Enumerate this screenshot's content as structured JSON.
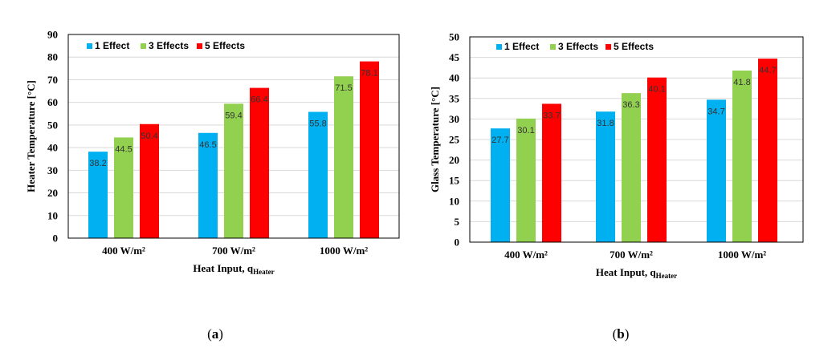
{
  "colors": {
    "1 Effect": "#00b0f0",
    "3 Effects": "#92d050",
    "5 Effects": "#ff0000",
    "grid": "#d9d9d9",
    "frame": "#000000"
  },
  "chart_data": [
    {
      "type": "bar",
      "panel_label": "a",
      "categories": [
        "400 W/m²",
        "700 W/m²",
        "1000 W/m²"
      ],
      "series": [
        {
          "name": "1 Effect",
          "values": [
            38.2,
            46.5,
            55.8
          ]
        },
        {
          "name": "3 Effects",
          "values": [
            44.5,
            59.4,
            71.5
          ]
        },
        {
          "name": "5 Effects",
          "values": [
            50.4,
            66.4,
            78.1
          ]
        }
      ],
      "xlabel": {
        "main": "Heat Input, q",
        "sub": "Heater"
      },
      "ylabel": "Heater Temperature [°C]",
      "ylim": [
        0,
        90
      ],
      "yticks": [
        0,
        10,
        20,
        30,
        40,
        50,
        60,
        70,
        80,
        90
      ],
      "grid": true,
      "legend": "top-left"
    },
    {
      "type": "bar",
      "panel_label": "b",
      "categories": [
        "400 W/m²",
        "700 W/m²",
        "1000 W/m²"
      ],
      "series": [
        {
          "name": "1 Effect",
          "values": [
            27.7,
            31.8,
            34.7
          ]
        },
        {
          "name": "3 Effects",
          "values": [
            30.1,
            36.3,
            41.8
          ]
        },
        {
          "name": "5 Effects",
          "values": [
            33.7,
            40.1,
            44.7
          ]
        }
      ],
      "xlabel": {
        "main": "Heat Input, q",
        "sub": "Heater"
      },
      "ylabel": "Glass Temperature [°C]",
      "ylim": [
        0,
        50
      ],
      "yticks": [
        0,
        5,
        10,
        15,
        20,
        25,
        30,
        35,
        40,
        45,
        50
      ],
      "grid": true,
      "legend": "top-left"
    }
  ]
}
